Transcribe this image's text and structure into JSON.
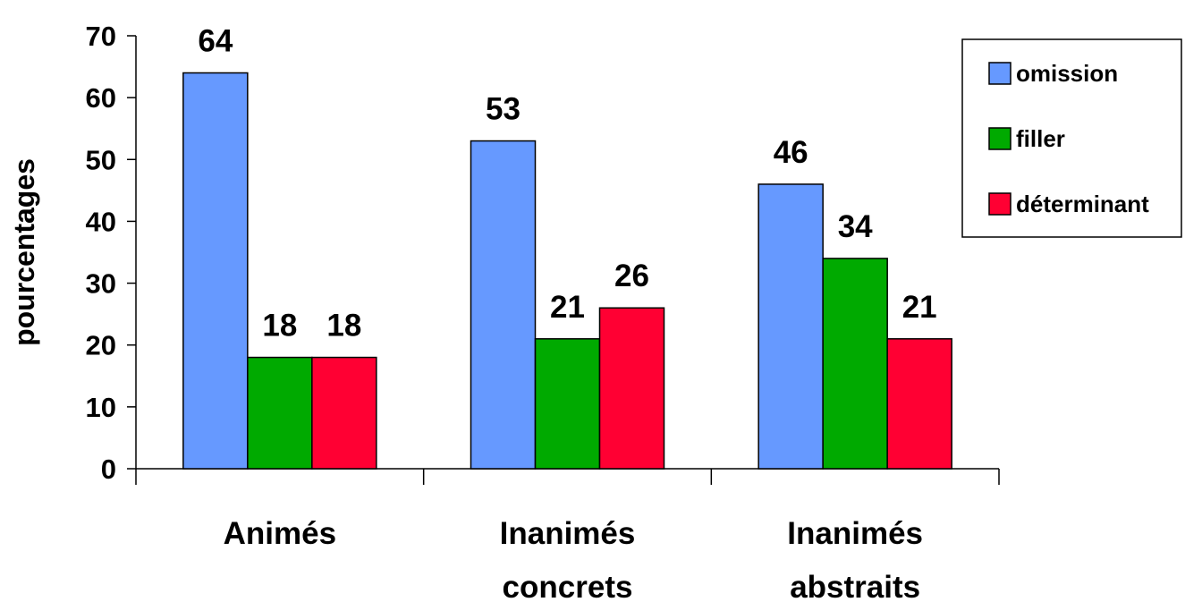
{
  "chart_data": {
    "type": "bar",
    "categories": [
      [
        "Animés"
      ],
      [
        "Inanimés",
        "concrets"
      ],
      [
        "Inanimés",
        "abstraits"
      ]
    ],
    "series": [
      {
        "name": "omission",
        "color": "#6699ff",
        "values": [
          64,
          53,
          46
        ]
      },
      {
        "name": "filler",
        "color": "#00aa00",
        "values": [
          18,
          21,
          34
        ]
      },
      {
        "name": "déterminant",
        "color": "#ff0033",
        "values": [
          18,
          26,
          21
        ]
      }
    ],
    "xlabel": "",
    "ylabel": "pourcentages",
    "ylim": [
      0,
      70
    ],
    "yticks": [
      0,
      10,
      20,
      30,
      40,
      50,
      60,
      70
    ],
    "grid": false,
    "legend": "top-right"
  }
}
